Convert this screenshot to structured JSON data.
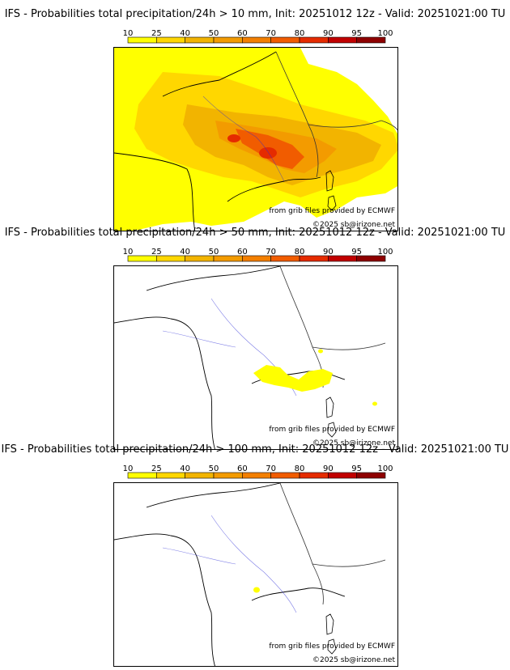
{
  "colorbar": {
    "ticks": [
      "10",
      "25",
      "40",
      "50",
      "60",
      "70",
      "80",
      "90",
      "95",
      "100"
    ],
    "colors": [
      "#ffff00",
      "#ffd700",
      "#f2b400",
      "#f39b00",
      "#f37f00",
      "#f15c00",
      "#e52b00",
      "#c10000",
      "#8e0000",
      "#5a0000"
    ]
  },
  "panels": [
    {
      "title": "IFS - Probabilities total precipitation/24h > 10 mm, Init: 20251012 12z - Valid: 20251021:00 TU"
    },
    {
      "title": "IFS - Probabilities total precipitation/24h > 50 mm, Init: 20251012 12z - Valid: 20251021:00 TU"
    },
    {
      "title": "IFS - Probabilities total precipitation/24h > 100 mm, Init: 20251012 12z - Valid: 20251021:00 TU"
    }
  ],
  "credits": {
    "source": "from grib files provided by ECMWF",
    "copyright": "©2025 sb@irizone.net"
  }
}
